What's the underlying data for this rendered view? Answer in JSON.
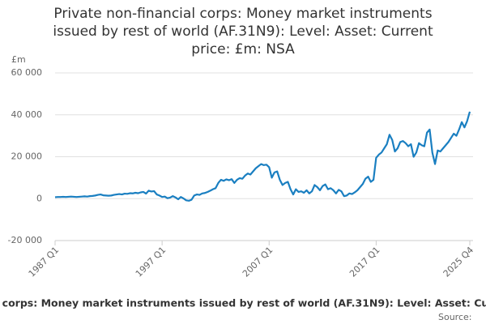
{
  "chart_data": {
    "type": "line",
    "title": "Private non-financial corps: Money market instruments issued by rest of world (AF.31N9): Level: Asset: Current price: £m: NSA",
    "y_unit": "£m",
    "categories": [
      "1987 Q1",
      null,
      null,
      null,
      null,
      null,
      null,
      null,
      null,
      null,
      null,
      null,
      null,
      null,
      null,
      null,
      null,
      null,
      null,
      null,
      null,
      null,
      null,
      null,
      null,
      null,
      null,
      null,
      null,
      null,
      null,
      null,
      null,
      null,
      null,
      null,
      null,
      null,
      null,
      null,
      "1997 Q1",
      null,
      null,
      null,
      null,
      null,
      null,
      null,
      null,
      null,
      null,
      null,
      null,
      null,
      null,
      null,
      null,
      null,
      null,
      null,
      null,
      null,
      null,
      null,
      null,
      null,
      null,
      null,
      null,
      null,
      null,
      null,
      null,
      null,
      null,
      null,
      null,
      null,
      null,
      null,
      "2007 Q1",
      null,
      null,
      null,
      null,
      null,
      null,
      null,
      null,
      null,
      null,
      null,
      null,
      null,
      null,
      null,
      null,
      null,
      null,
      null,
      null,
      null,
      null,
      null,
      null,
      null,
      null,
      null,
      null,
      null,
      null,
      null,
      null,
      null,
      null,
      null,
      null,
      null,
      null,
      null,
      "2017 Q1",
      null,
      null,
      null,
      null,
      null,
      null,
      null,
      null,
      null,
      null,
      null,
      null,
      null,
      null,
      null,
      null,
      null,
      null,
      null,
      null,
      null,
      null,
      null,
      null,
      null,
      null,
      null,
      null,
      null,
      null,
      null,
      null,
      null,
      null,
      "2025 Q4"
    ],
    "series": [
      {
        "name": "Private non-financial corps: Money market instruments issued by rest of world (AF.31N9): Level: Asset: Current price: £m: NSA",
        "color": "#1a7fc1",
        "values": [
          700,
          800,
          800,
          900,
          800,
          900,
          1000,
          900,
          800,
          900,
          1000,
          1100,
          1000,
          1200,
          1300,
          1500,
          1800,
          2000,
          1600,
          1500,
          1400,
          1500,
          1800,
          2000,
          2200,
          2000,
          2400,
          2300,
          2600,
          2500,
          2800,
          2600,
          3000,
          3200,
          2400,
          3800,
          3400,
          3600,
          2000,
          1500,
          800,
          1000,
          200,
          500,
          1200,
          600,
          -300,
          800,
          100,
          -800,
          -1000,
          -500,
          1500,
          2000,
          1800,
          2500,
          2700,
          3200,
          3800,
          4500,
          5000,
          7500,
          9000,
          8500,
          9200,
          8800,
          9300,
          7500,
          9000,
          9800,
          9500,
          11000,
          12000,
          11500,
          13000,
          14500,
          15500,
          16500,
          16000,
          16200,
          15000,
          10000,
          12500,
          13000,
          9000,
          6500,
          7500,
          8000,
          4500,
          2000,
          4500,
          3200,
          3500,
          2800,
          4000,
          2500,
          3500,
          6500,
          5500,
          4000,
          6000,
          6800,
          4500,
          5000,
          4000,
          2500,
          4200,
          3500,
          1200,
          1500,
          2500,
          2200,
          3000,
          4000,
          5500,
          7000,
          9500,
          10500,
          8000,
          9000,
          19500,
          21000,
          22000,
          24000,
          26000,
          30500,
          28000,
          22500,
          24000,
          27000,
          27500,
          26500,
          25000,
          26000,
          20000,
          22000,
          26500,
          25500,
          25000,
          31500,
          33000,
          22000,
          16500,
          23000,
          22500,
          24000,
          25500,
          27000,
          29000,
          31000,
          30000,
          33000,
          36500,
          34000,
          37000,
          41500
        ]
      }
    ],
    "ylim": [
      -20000,
      60000
    ],
    "yticks": [
      {
        "value": -20000,
        "label": "-20 000"
      },
      {
        "value": 0,
        "label": "0"
      },
      {
        "value": 20000,
        "label": "20 000"
      },
      {
        "value": 40000,
        "label": "40 000"
      },
      {
        "value": 60000,
        "label": "60 000"
      }
    ],
    "grid": true,
    "source": "Source:"
  }
}
